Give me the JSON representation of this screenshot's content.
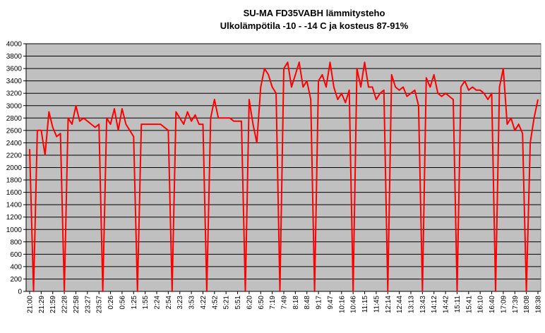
{
  "chart_data": {
    "type": "line",
    "title": "SU-MA FD35VABH lämmitysteho",
    "subtitle": "Ulkolämpötila  -10 - -14 C ja kosteus 87-91%",
    "categories": [
      "21:00",
      null,
      null,
      "21:29",
      null,
      null,
      "21:59",
      null,
      null,
      "22:28",
      null,
      null,
      "22:58",
      null,
      null,
      "23:27",
      null,
      null,
      "23:57",
      null,
      null,
      "0:26",
      null,
      null,
      "0:56",
      null,
      null,
      "1:25",
      null,
      null,
      "1:55",
      null,
      null,
      "2:24",
      null,
      null,
      "2:54",
      null,
      null,
      "3:23",
      null,
      null,
      "3:53",
      null,
      null,
      "4:22",
      null,
      null,
      "4:52",
      null,
      null,
      "5:21",
      null,
      null,
      "5:51",
      null,
      null,
      "6:20",
      null,
      null,
      "6:50",
      null,
      null,
      "7:19",
      null,
      null,
      "7:49",
      null,
      null,
      "8:18",
      null,
      null,
      "8:48",
      null,
      null,
      "9:17",
      null,
      null,
      "9:47",
      null,
      null,
      "10:16",
      null,
      null,
      "10:46",
      null,
      null,
      "11:15",
      null,
      null,
      "11:45",
      null,
      null,
      "12:14",
      null,
      null,
      "12:44",
      null,
      null,
      "13:13",
      null,
      null,
      "13:43",
      null,
      null,
      "14:12",
      null,
      null,
      "14:42",
      null,
      null,
      "15:11",
      null,
      null,
      "15:41",
      null,
      null,
      "16:10",
      null,
      null,
      "16:40",
      null,
      null,
      "17:09",
      null,
      null,
      "17:39",
      null,
      null,
      "18:08",
      null,
      null,
      "18:38"
    ],
    "values": [
      2300,
      0,
      2600,
      2600,
      2200,
      2900,
      2650,
      2500,
      2550,
      0,
      2800,
      2700,
      3000,
      2750,
      2800,
      2750,
      2700,
      2650,
      2700,
      0,
      2800,
      2700,
      2950,
      2600,
      2950,
      2700,
      2600,
      2500,
      0,
      2700,
      2700,
      2700,
      2700,
      2700,
      2700,
      2650,
      2600,
      0,
      2900,
      2800,
      2700,
      2900,
      2750,
      2850,
      2700,
      2700,
      0,
      2800,
      3100,
      2800,
      2800,
      2800,
      2800,
      2750,
      2750,
      2750,
      0,
      3100,
      2700,
      2400,
      3300,
      3600,
      3500,
      3300,
      3200,
      0,
      3600,
      3700,
      3300,
      3500,
      3700,
      3300,
      3400,
      3100,
      0,
      3400,
      3500,
      3300,
      3700,
      3300,
      3100,
      3200,
      3050,
      3250,
      0,
      3600,
      3300,
      3700,
      3300,
      3300,
      3100,
      3200,
      3250,
      0,
      3500,
      3300,
      3250,
      3300,
      3150,
      3200,
      3250,
      3000,
      0,
      3450,
      3300,
      3500,
      3200,
      3150,
      3200,
      3150,
      3100,
      0,
      3300,
      3400,
      3250,
      3300,
      3250,
      3250,
      3200,
      3100,
      3200,
      0,
      3300,
      3600,
      2700,
      2800,
      2600,
      2700,
      2550,
      0,
      2400,
      2800,
      3100
    ],
    "color": "#ff0000",
    "ylim": [
      0,
      4000
    ],
    "yticks": [
      0,
      200,
      400,
      600,
      800,
      1000,
      1200,
      1400,
      1600,
      1800,
      2000,
      2200,
      2400,
      2600,
      2800,
      3000,
      3200,
      3400,
      3600,
      3800,
      4000
    ],
    "grid": true
  }
}
